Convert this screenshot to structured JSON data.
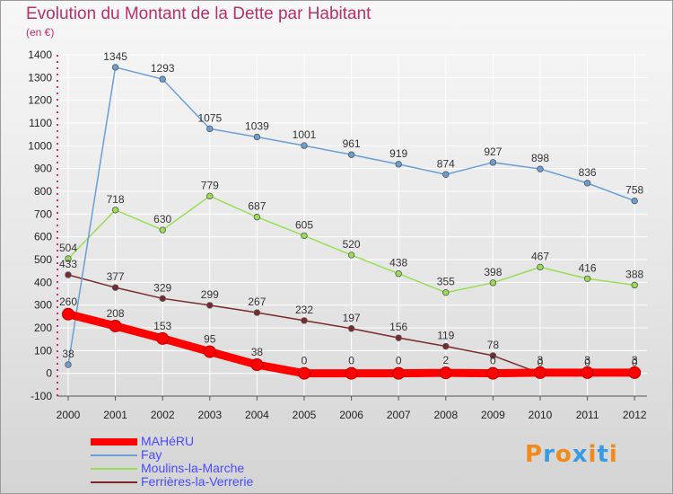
{
  "title": "Evolution du Montant de la Dette par Habitant",
  "subtitle": "(en €)",
  "logo": {
    "text": "Proxiti",
    "colors": [
      "#f08a1c",
      "#3b9be0",
      "#f08a1c",
      "#3b9be0",
      "#f08a1c",
      "#3b9be0",
      "#f08a1c"
    ]
  },
  "chart_data": {
    "type": "line",
    "title": "Evolution du Montant de la Dette par Habitant",
    "ylabel": "(en €)",
    "x": [
      "2000",
      "2001",
      "2002",
      "2003",
      "2004",
      "2005",
      "2006",
      "2007",
      "2008",
      "2009",
      "2010",
      "2011",
      "2012"
    ],
    "ylim": [
      -100,
      1400
    ],
    "yticks": [
      -100,
      0,
      100,
      200,
      300,
      400,
      500,
      600,
      700,
      800,
      900,
      1000,
      1100,
      1200,
      1300,
      1400
    ],
    "grid": true,
    "legend_position": "bottom-left",
    "series": [
      {
        "name": "MAHéRU",
        "color": "#ff0000",
        "thick": true,
        "values": [
          260,
          208,
          153,
          95,
          38,
          0,
          0,
          0,
          2,
          0,
          3,
          3,
          3
        ],
        "labels": [
          "260",
          "208",
          "153",
          "95",
          "38",
          "0",
          "0",
          "0",
          "2",
          "0",
          "3",
          "3",
          "3"
        ]
      },
      {
        "name": "Fay",
        "color": "#6a9fd4",
        "thick": false,
        "values": [
          38,
          1345,
          1293,
          1075,
          1039,
          1001,
          961,
          919,
          874,
          927,
          898,
          836,
          758
        ],
        "labels": [
          "38",
          "1345",
          "1293",
          "1075",
          "1039",
          "1001",
          "961",
          "919",
          "874",
          "927",
          "898",
          "836",
          "758"
        ]
      },
      {
        "name": "Moulins-la-Marche",
        "color": "#99dd55",
        "thick": false,
        "values": [
          504,
          718,
          630,
          779,
          687,
          605,
          520,
          438,
          355,
          398,
          467,
          416,
          388
        ],
        "labels": [
          "504",
          "718",
          "630",
          "779",
          "687",
          "605",
          "520",
          "438",
          "355",
          "398",
          "467",
          "416",
          "388"
        ]
      },
      {
        "name": "Ferrières-la-Verrerie",
        "color": "#7a2a2a",
        "thick": false,
        "values": [
          433,
          377,
          329,
          299,
          267,
          232,
          197,
          156,
          119,
          78,
          0,
          0,
          0
        ],
        "labels": [
          "433",
          "377",
          "329",
          "299",
          "267",
          "232",
          "197",
          "156",
          "119",
          "78",
          "0",
          "0",
          "0"
        ]
      }
    ]
  }
}
